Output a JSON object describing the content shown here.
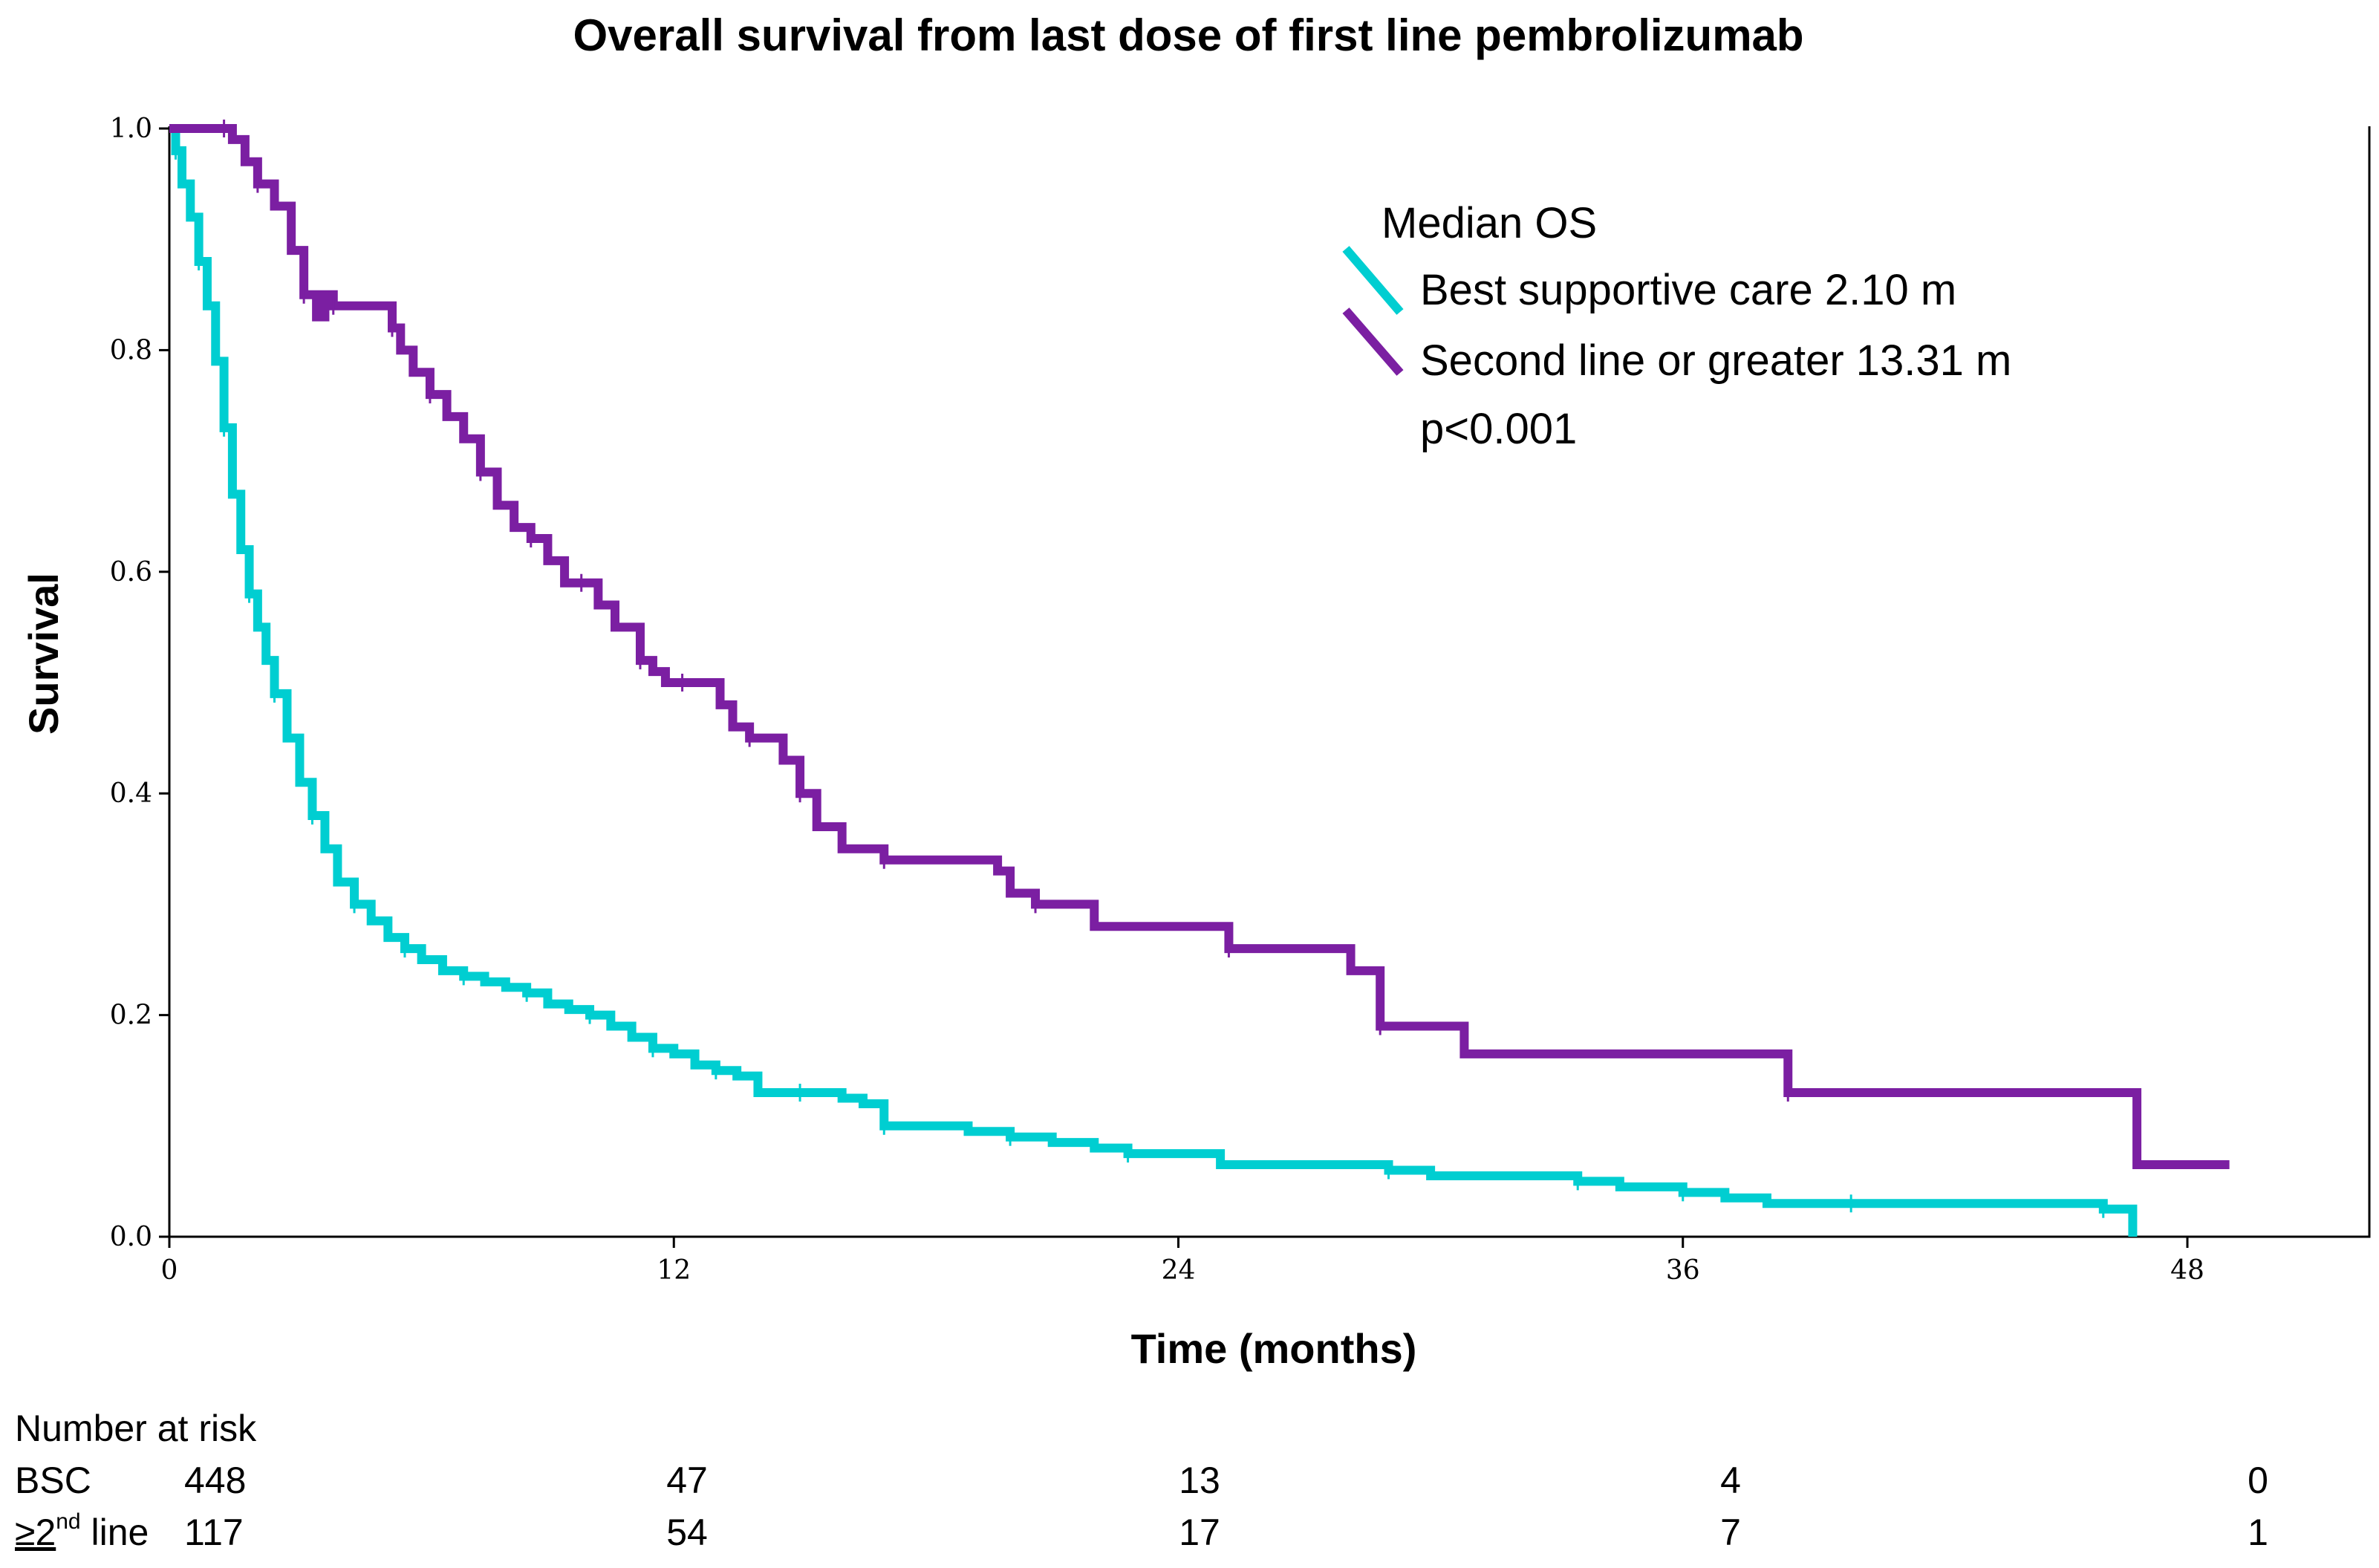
{
  "chart_data": {
    "type": "line",
    "title": "Overall survival from last dose of first line pembrolizumab",
    "xlabel": "Time (months)",
    "ylabel": "Survival",
    "xlim": [
      0,
      50
    ],
    "ylim": [
      0,
      1
    ],
    "x_ticks": [
      0,
      12,
      24,
      36,
      48
    ],
    "y_ticks": [
      0.0,
      0.2,
      0.4,
      0.6,
      0.8,
      1.0
    ],
    "x_tick_labels": [
      "0",
      "12",
      "24",
      "36",
      "48"
    ],
    "y_tick_labels": [
      "0.0",
      "0.2",
      "0.4",
      "0.6",
      "0.8",
      "1.0"
    ],
    "legend": {
      "title": "Median OS",
      "placement": "top-right",
      "entries": [
        {
          "label": "Best supportive care 2.10 m",
          "color": "#00CED1"
        },
        {
          "label": "Second line or greater 13.31 m",
          "color": "#7B1FA2"
        }
      ],
      "pvalue": "p<0.001"
    },
    "series": [
      {
        "name": "Best supportive care",
        "color": "#00CED1",
        "x": [
          0,
          0.15,
          0.3,
          0.5,
          0.7,
          0.9,
          1.1,
          1.3,
          1.5,
          1.7,
          1.9,
          2.1,
          2.3,
          2.5,
          2.8,
          3.1,
          3.4,
          3.7,
          4.0,
          4.4,
          4.8,
          5.2,
          5.6,
          6.0,
          6.5,
          7.0,
          7.5,
          8.0,
          8.5,
          9.0,
          9.5,
          10.0,
          10.5,
          11.0,
          11.5,
          12.0,
          12.5,
          13.0,
          13.5,
          14.0,
          15.0,
          16.0,
          16.5,
          17.0,
          18.0,
          19.0,
          20.0,
          21.0,
          22.0,
          22.8,
          25.0,
          28.0,
          29.0,
          30.0,
          32.0,
          33.5,
          34.5,
          35.0,
          36.0,
          37.0,
          38.0,
          40.0,
          42.0,
          44.0,
          46.0,
          46.7,
          46.7
        ],
        "y": [
          1.0,
          0.98,
          0.95,
          0.92,
          0.88,
          0.84,
          0.79,
          0.73,
          0.67,
          0.62,
          0.58,
          0.55,
          0.52,
          0.49,
          0.45,
          0.41,
          0.38,
          0.35,
          0.32,
          0.3,
          0.285,
          0.27,
          0.26,
          0.25,
          0.24,
          0.235,
          0.23,
          0.225,
          0.22,
          0.21,
          0.205,
          0.2,
          0.19,
          0.18,
          0.17,
          0.165,
          0.155,
          0.15,
          0.145,
          0.13,
          0.13,
          0.125,
          0.12,
          0.1,
          0.1,
          0.095,
          0.09,
          0.085,
          0.08,
          0.075,
          0.065,
          0.065,
          0.06,
          0.055,
          0.055,
          0.05,
          0.045,
          0.045,
          0.04,
          0.035,
          0.03,
          0.03,
          0.03,
          0.03,
          0.025,
          0.025,
          0.0
        ]
      },
      {
        "name": "Second line or greater",
        "color": "#7B1FA2",
        "x": [
          0,
          1.3,
          1.5,
          1.8,
          2.1,
          2.5,
          2.9,
          3.2,
          3.5,
          3.7,
          3.9,
          4.1,
          4.4,
          5.3,
          5.5,
          5.8,
          6.2,
          6.6,
          7.0,
          7.4,
          7.8,
          8.2,
          8.6,
          9.0,
          9.4,
          9.8,
          10.2,
          10.6,
          11.2,
          11.5,
          11.8,
          12.2,
          13.1,
          13.4,
          13.8,
          14.2,
          14.6,
          15.0,
          15.4,
          16.0,
          17.0,
          19.7,
          20.0,
          20.6,
          21.3,
          22.0,
          25.2,
          26.5,
          28.1,
          28.8,
          30.8,
          38.2,
          38.5,
          46.5,
          46.8,
          49.0
        ],
        "y": [
          1.0,
          1.0,
          0.99,
          0.97,
          0.95,
          0.93,
          0.89,
          0.85,
          0.83,
          0.85,
          0.84,
          0.84,
          0.84,
          0.82,
          0.8,
          0.78,
          0.76,
          0.74,
          0.72,
          0.69,
          0.66,
          0.64,
          0.63,
          0.61,
          0.59,
          0.59,
          0.57,
          0.55,
          0.52,
          0.51,
          0.5,
          0.5,
          0.48,
          0.46,
          0.45,
          0.45,
          0.43,
          0.4,
          0.37,
          0.35,
          0.34,
          0.33,
          0.31,
          0.3,
          0.3,
          0.28,
          0.26,
          0.26,
          0.24,
          0.19,
          0.165,
          0.165,
          0.13,
          0.13,
          0.065,
          0.065
        ]
      }
    ]
  },
  "risk_table": {
    "title": "Number at risk",
    "rows": [
      {
        "label": "BSC",
        "values": [
          "448",
          "47",
          "13",
          "4",
          "0"
        ]
      },
      {
        "label_main": "≥2",
        "label_sup": "nd",
        "label_suffix": " line",
        "values": [
          "117",
          "54",
          "17",
          "7",
          "1"
        ]
      }
    ]
  }
}
